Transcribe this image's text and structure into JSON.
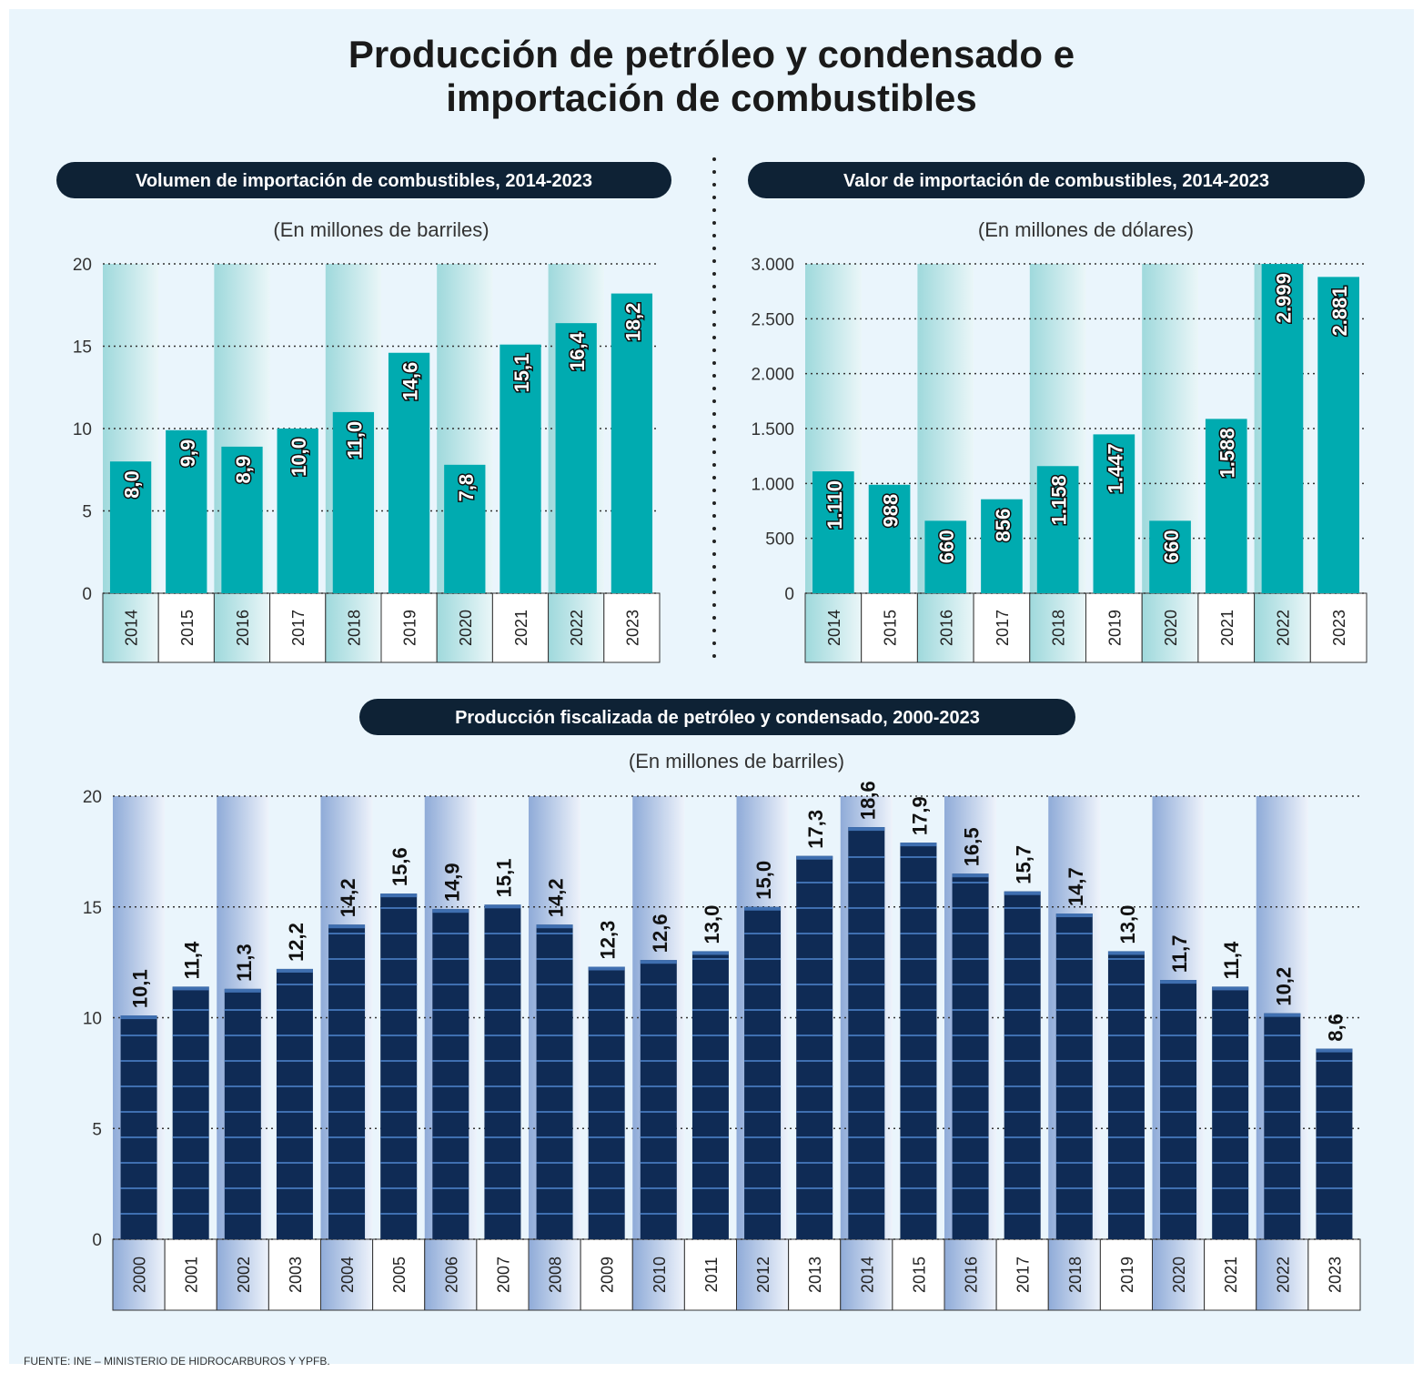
{
  "title": "Producción de petróleo y condensado e importación de combustibles",
  "source": "FUENTE: INE – MINISTERIO DE HIDROCARBUROS Y YPFB.",
  "chart_data": [
    {
      "type": "bar",
      "title": "Volumen de importación de combustibles, 2014-2023",
      "subtitle": "(En millones de barriles)",
      "categories": [
        "2014",
        "2015",
        "2016",
        "2017",
        "2018",
        "2019",
        "2020",
        "2021",
        "2022",
        "2023"
      ],
      "values": [
        8.0,
        9.9,
        8.9,
        10.0,
        11.0,
        14.6,
        7.8,
        15.1,
        16.4,
        18.2
      ],
      "value_labels": [
        "8,0",
        "9,9",
        "8,9",
        "10,0",
        "11,0",
        "14,6",
        "7,8",
        "15,1",
        "16,4",
        "18,2"
      ],
      "color": "#00abb0",
      "ylim": [
        0,
        20
      ],
      "yticks": [
        0,
        5,
        10,
        15,
        20
      ],
      "grid": true
    },
    {
      "type": "bar",
      "title": "Valor de importación de combustibles, 2014-2023",
      "subtitle": "(En millones de dólares)",
      "categories": [
        "2014",
        "2015",
        "2016",
        "2017",
        "2018",
        "2019",
        "2020",
        "2021",
        "2022",
        "2023"
      ],
      "values": [
        1110,
        988,
        660,
        856,
        1158,
        1447,
        660,
        1588,
        2999,
        2881
      ],
      "value_labels": [
        "1.110",
        "988",
        "660",
        "856",
        "1.158",
        "1.447",
        "660",
        "1.588",
        "2.999",
        "2.881"
      ],
      "color": "#00abb0",
      "ylim": [
        0,
        3000
      ],
      "yticks": [
        0,
        500,
        {
          "value": 1000,
          "label": "1.000"
        },
        {
          "value": 1500,
          "label": "1.500"
        },
        {
          "value": 2000,
          "label": "2.000"
        },
        {
          "value": 2500,
          "label": "2.500"
        },
        {
          "value": 3000,
          "label": "3.000"
        }
      ],
      "grid": true
    },
    {
      "type": "bar",
      "title": "Producción fiscalizada de petróleo y condensado, 2000-2023",
      "subtitle": "(En millones de barriles)",
      "categories": [
        "2000",
        "2001",
        "2002",
        "2003",
        "2004",
        "2005",
        "2006",
        "2007",
        "2008",
        "2009",
        "2010",
        "2011",
        "2012",
        "2013",
        "2014",
        "2015",
        "2016",
        "2017",
        "2018",
        "2019",
        "2020",
        "2021",
        "2022",
        "2023"
      ],
      "values": [
        10.1,
        11.4,
        11.3,
        12.2,
        14.2,
        15.6,
        14.9,
        15.1,
        14.2,
        12.3,
        12.6,
        13.0,
        15.0,
        17.3,
        18.6,
        17.9,
        16.5,
        15.7,
        14.7,
        13.0,
        11.7,
        11.4,
        10.2,
        8.6
      ],
      "value_labels": [
        "10,1",
        "11,4",
        "11,3",
        "12,2",
        "14,2",
        "15,6",
        "14,9",
        "15,1",
        "14,2",
        "12,3",
        "12,6",
        "13,0",
        "15,0",
        "17,3",
        "18,6",
        "17,9",
        "16,5",
        "15,7",
        "14,7",
        "13,0",
        "11,7",
        "11,4",
        "10,2",
        "8,6"
      ],
      "color": "#0f2b55",
      "ylim": [
        0,
        20
      ],
      "yticks": [
        0,
        5,
        10,
        15,
        20
      ],
      "grid": true
    }
  ]
}
